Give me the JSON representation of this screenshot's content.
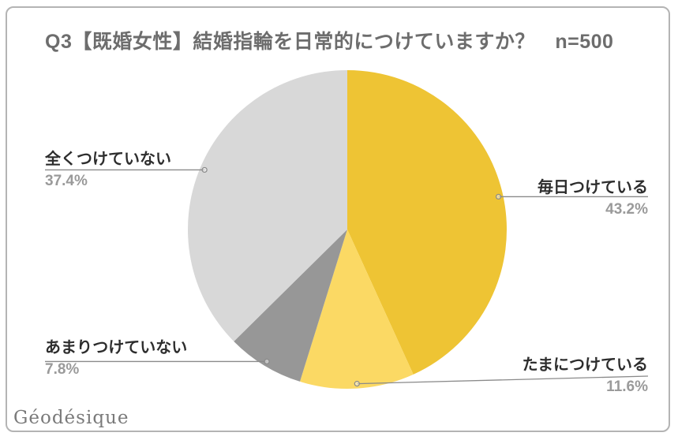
{
  "header": {
    "title": "Q3【既婚女性】結婚指輪を日常的につけていますか？　n=500"
  },
  "watermark": {
    "text": "Géodésique"
  },
  "chart_data": {
    "type": "pie",
    "title": "Q3【既婚女性】結婚指輪を日常的につけていますか？ n=500",
    "sample_size_label": "n=500",
    "start_angle_deg": 0,
    "direction": "clockwise",
    "legend_position": "callouts",
    "slices": [
      {
        "label": "毎日つけている",
        "value_pct": 43.2,
        "pct_text": "43.2%",
        "color": "#EEC434"
      },
      {
        "label": "たまにつけている",
        "value_pct": 11.6,
        "pct_text": "11.6%",
        "color": "#FBD964"
      },
      {
        "label": "あまりつけていない",
        "value_pct": 7.8,
        "pct_text": "7.8%",
        "color": "#979797"
      },
      {
        "label": "全くつけていない",
        "value_pct": 37.4,
        "pct_text": "37.4%",
        "color": "#D8D8D8"
      }
    ],
    "leader_line_color": "#8a8a8a",
    "label_color": "#2d2d2d",
    "pct_color": "#9a9a9a",
    "title_color": "#6d6d6d"
  }
}
